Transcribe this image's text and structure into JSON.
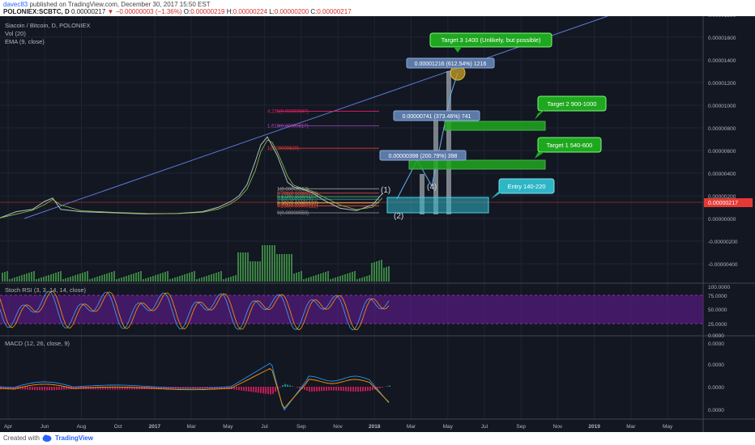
{
  "header": {
    "username": "davec83",
    "published_text": "published on TradingView.com, December 30, 2017 15:50 EST",
    "symbol": "POLONIEX:SCBTC, D",
    "price": "0.00000217",
    "change": "−0.00000003 (−1.36%)",
    "o_label": "O:",
    "o_value": "0.00000219",
    "h_label": "H:",
    "h_value": "0.00000224",
    "l_label": "L:",
    "l_value": "0.00000200",
    "c_label": "C:",
    "c_value": "0.00000217"
  },
  "legend": {
    "title": "Siacoin / Bitcoin, D, POLONIEX",
    "vol": "Vol (20)",
    "ema": "EMA (9, close)",
    "stoch": "Stoch RSI (3, 3, 14, 14, close)",
    "macd": "MACD (12, 26, close, 9)"
  },
  "footer": {
    "created": "Created with",
    "brand": "TradingView"
  },
  "colors": {
    "background": "#131722",
    "candle_green": "#4caf50",
    "candle_red": "#ef5350",
    "trendline": "#5b7bd5",
    "target_box": "#1fa81f",
    "entry_box": "#2fb6c6",
    "stoch_band": "#6a1b9a",
    "price_tag": "#e53935"
  },
  "chart_data": {
    "type": "line",
    "x_ticks": [
      "Apr",
      "Jun",
      "Aug",
      "Oct",
      "2017",
      "Mar",
      "May",
      "Jul",
      "Sep",
      "Nov",
      "2018",
      "Mar",
      "May",
      "Jul",
      "Sep",
      "Nov",
      "2019",
      "Mar",
      "May"
    ],
    "y_ticks_price": [
      "0.00001800",
      "0.00001600",
      "0.00001400",
      "0.00001200",
      "0.00001000",
      "0.00000800",
      "0.00000600",
      "0.00000400",
      "0.00000200",
      "0.00000000",
      "-0.00000200",
      "-0.00000400"
    ],
    "current_price_tag": "0.00000217",
    "y_ticks_stoch": [
      "100.0000",
      "75.0000",
      "50.0000",
      "25.0000",
      "0.0000"
    ],
    "y_ticks_macd": [
      "0.0000",
      "0.0000",
      "0.0000",
      "0.0000"
    ],
    "fib_levels": [
      {
        "label": "4.236(0.00000947)",
        "value": 9.47e-06
      },
      {
        "label": "1.618(0.00000817)",
        "value": 8.17e-06
      },
      {
        "label": "1(0.00000620)",
        "value": 6.2e-06
      },
      {
        "label": "1(0.00000262)",
        "value": 2.62e-06
      },
      {
        "label": "0.786(0.00000223)",
        "value": 2.23e-06
      },
      {
        "label": "0.618(0.00000192)",
        "value": 1.92e-06
      },
      {
        "label": "0.5(0.00000170)",
        "value": 1.7e-06
      },
      {
        "label": "0.382(0.00000137)",
        "value": 1.37e-06
      },
      {
        "label": "0.236(0.00000112)",
        "value": 1.12e-06
      },
      {
        "label": "0(0.00000050)",
        "value": 5e-07
      }
    ],
    "targets": [
      {
        "label": "Target 3  1400 (Unlikely, but possible)"
      },
      {
        "label": "Target 2  900-1000",
        "low": 9e-06,
        "high": 1e-05
      },
      {
        "label": "Target 1  540-600",
        "low": 5.4e-06,
        "high": 6e-06
      },
      {
        "label": "Entry  140-220",
        "low": 1.4e-06,
        "high": 2.2e-06
      }
    ],
    "measurements": [
      {
        "label": "0.00001216 (612.54%) 1216"
      },
      {
        "label": "0.00000741 (373.46%) 741"
      },
      {
        "label": "0.00000398 (200.79%) 398"
      }
    ],
    "waves": [
      "(1)",
      "(2)",
      "(4)"
    ],
    "price_path": [
      [
        0,
        5e-08
      ],
      [
        20,
        6e-07
      ],
      [
        40,
        8e-07
      ],
      [
        55,
        1.5e-06
      ],
      [
        65,
        1.8e-06
      ],
      [
        75,
        8e-07
      ],
      [
        100,
        6e-07
      ],
      [
        140,
        5e-07
      ],
      [
        180,
        4e-07
      ],
      [
        220,
        4.5e-07
      ],
      [
        250,
        6e-07
      ],
      [
        270,
        1e-06
      ],
      [
        285,
        1.5e-06
      ],
      [
        295,
        2e-06
      ],
      [
        305,
        3e-06
      ],
      [
        315,
        5e-06
      ],
      [
        322,
        6.5e-06
      ],
      [
        330,
        7.2e-06
      ],
      [
        336,
        6.4e-06
      ],
      [
        342,
        5.6e-06
      ],
      [
        348,
        4.5e-06
      ],
      [
        355,
        3.2e-06
      ],
      [
        362,
        2.8e-06
      ],
      [
        372,
        2.6e-06
      ],
      [
        385,
        2.3e-06
      ],
      [
        400,
        1.6e-06
      ],
      [
        420,
        9e-07
      ],
      [
        440,
        7e-07
      ],
      [
        460,
        1.2e-06
      ],
      [
        472,
        2.2e-06
      ]
    ]
  }
}
